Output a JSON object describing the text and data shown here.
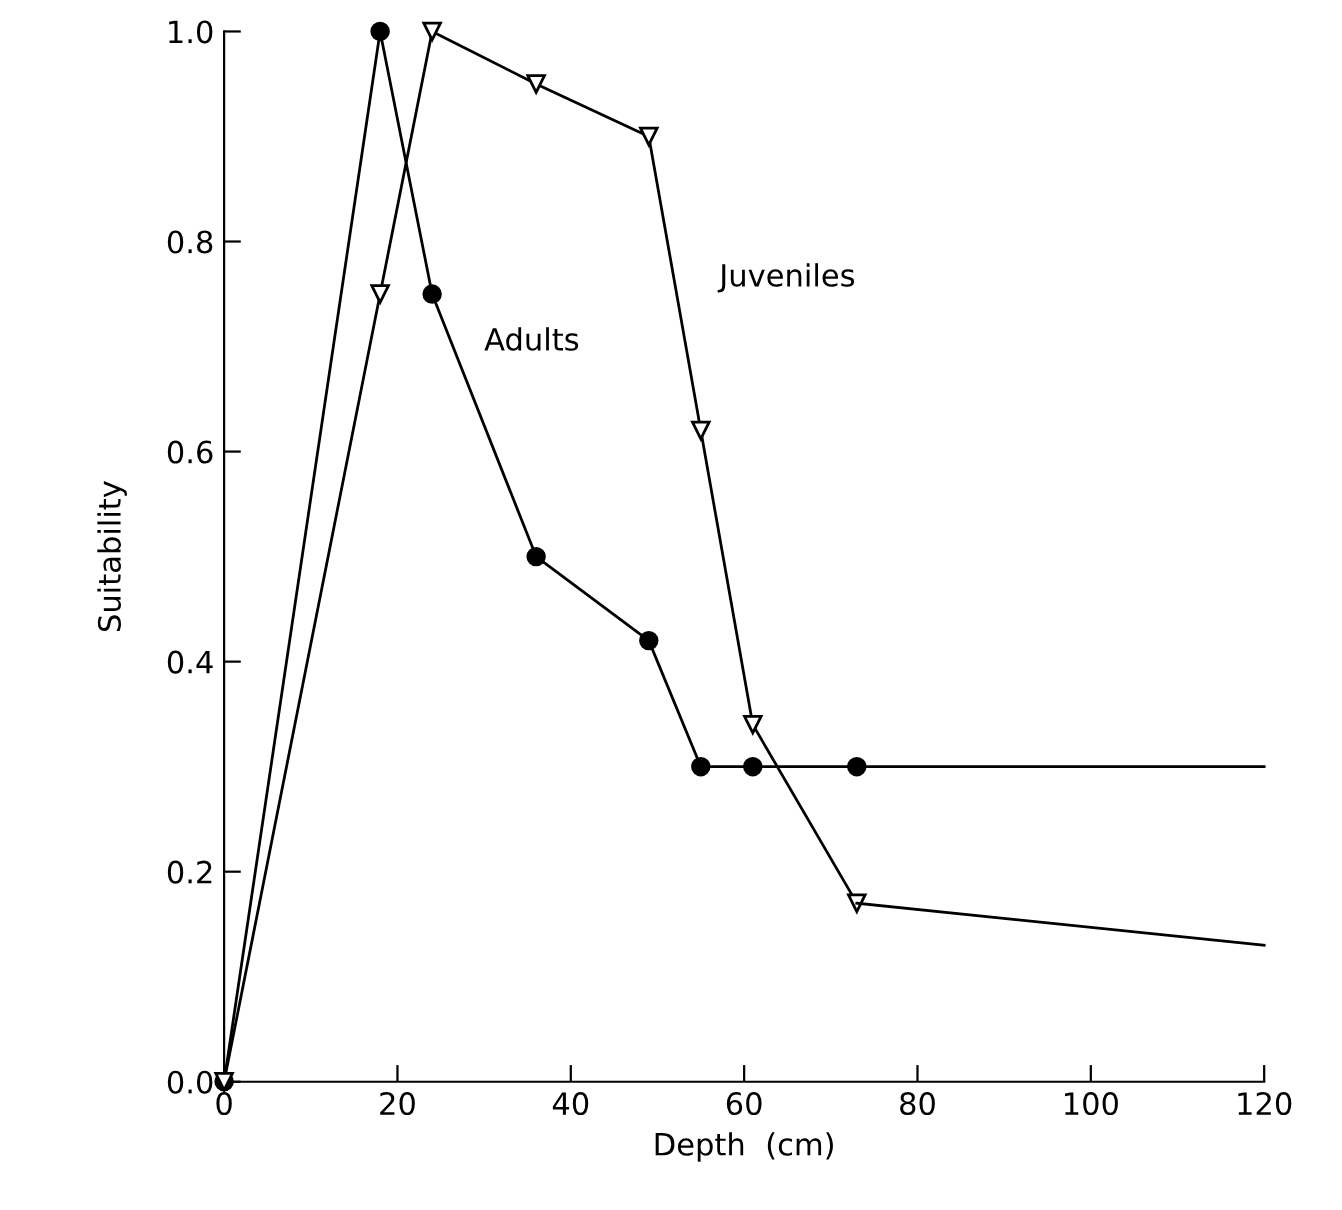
{
  "chart_data": {
    "type": "line",
    "xlabel": "Depth  (cm)",
    "ylabel": "Suitability",
    "series": [
      {
        "name": "Adults",
        "color": "#000000",
        "marker": "circle",
        "x": [
          0,
          18,
          24,
          36,
          49,
          55,
          61,
          73
        ],
        "values": [
          0,
          1.0,
          0.75,
          0.5,
          0.42,
          0.3,
          0.3,
          0.3
        ]
      },
      {
        "name": "Juveniles",
        "color": "#000000",
        "marker": "triangle",
        "x": [
          0,
          18,
          24,
          36,
          49,
          55,
          61,
          73
        ],
        "values": [
          0,
          0.75,
          1.0,
          0.95,
          0.9,
          0.62,
          0.34,
          0.17
        ]
      },
      {
        "color": "#000000",
        "marker": "none",
        "x": [
          73,
          120
        ],
        "values": [
          0.3,
          0.3
        ]
      },
      {
        "color": "#000000",
        "marker": "none",
        "x": [
          73,
          120
        ],
        "values": [
          0.17,
          0.13
        ]
      }
    ],
    "xlim": [
      0,
      120
    ],
    "xticks": [
      0,
      20,
      40,
      60,
      80,
      100,
      120
    ],
    "ylim": [
      0,
      1.0
    ],
    "yticks": [
      {
        "value": 0,
        "label": "0.0"
      },
      {
        "value": 0.2,
        "label": "0.2"
      },
      {
        "value": 0.4,
        "label": "0.4"
      },
      {
        "value": 0.6,
        "label": "0.6"
      },
      {
        "value": 0.8,
        "label": "0.8"
      },
      {
        "value": 1.0,
        "label": "1.0"
      }
    ],
    "grid": false,
    "legend": false,
    "line_style": "solid"
  }
}
